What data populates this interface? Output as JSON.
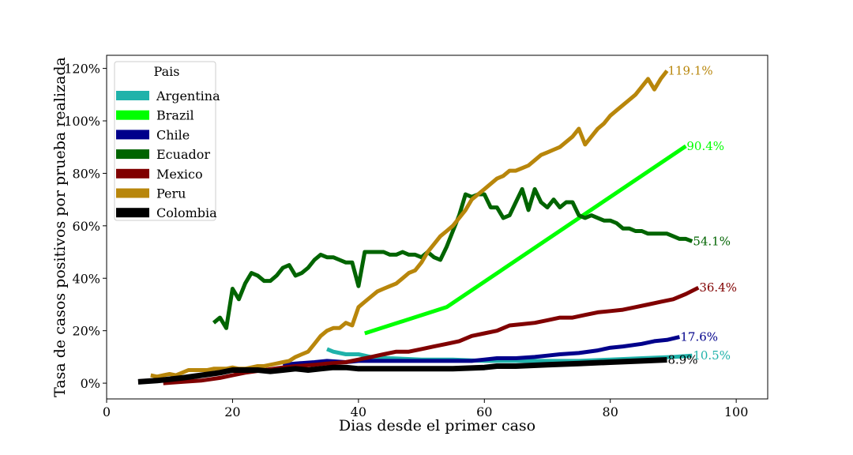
{
  "chart_data": {
    "type": "line",
    "title": "",
    "xlabel": "Dias desde el primer caso",
    "ylabel": "Tasa de casos positivos por prueba realizada",
    "xlim": [
      0,
      105
    ],
    "ylim": [
      -6,
      125
    ],
    "xticks": [
      0,
      20,
      40,
      60,
      80,
      100
    ],
    "xtick_labels": [
      "0",
      "20",
      "40",
      "60",
      "80",
      "100"
    ],
    "yticks": [
      0,
      20,
      40,
      60,
      80,
      100,
      120
    ],
    "ytick_labels": [
      "0%",
      "20%",
      "40%",
      "60%",
      "80%",
      "100%",
      "120%"
    ],
    "grid": false,
    "legend": {
      "title": "Pais",
      "position": "top-left",
      "entries": [
        "Argentina",
        "Brazil",
        "Chile",
        "Ecuador",
        "Mexico",
        "Peru",
        "Colombia"
      ]
    },
    "series": [
      {
        "name": "Argentina",
        "color": "#20b2aa",
        "end_label": "10.5%",
        "points": [
          [
            35,
            13
          ],
          [
            36,
            12
          ],
          [
            38,
            11
          ],
          [
            40,
            11
          ],
          [
            42,
            10
          ],
          [
            45,
            9.5
          ],
          [
            50,
            9
          ],
          [
            55,
            9
          ],
          [
            60,
            8.5
          ],
          [
            65,
            8.5
          ],
          [
            70,
            8.5
          ],
          [
            75,
            8.5
          ],
          [
            80,
            9
          ],
          [
            85,
            9.5
          ],
          [
            90,
            10
          ],
          [
            93,
            10.5
          ]
        ]
      },
      {
        "name": "Brazil",
        "color": "#00ff00",
        "end_label": "90.4%",
        "points": [
          [
            41,
            19
          ],
          [
            54,
            29
          ],
          [
            92,
            90.4
          ]
        ]
      },
      {
        "name": "Chile",
        "color": "#00008b",
        "end_label": "17.6%",
        "points": [
          [
            28,
            7
          ],
          [
            30,
            7.5
          ],
          [
            33,
            8
          ],
          [
            35,
            8.5
          ],
          [
            38,
            8
          ],
          [
            40,
            8.5
          ],
          [
            45,
            8.5
          ],
          [
            50,
            8.5
          ],
          [
            55,
            8.5
          ],
          [
            58,
            8.5
          ],
          [
            60,
            9
          ],
          [
            62,
            9.5
          ],
          [
            65,
            9.5
          ],
          [
            68,
            10
          ],
          [
            70,
            10.5
          ],
          [
            72,
            11
          ],
          [
            75,
            11.5
          ],
          [
            78,
            12.5
          ],
          [
            80,
            13.5
          ],
          [
            82,
            14
          ],
          [
            85,
            15
          ],
          [
            87,
            16
          ],
          [
            89,
            16.5
          ],
          [
            91,
            17.6
          ]
        ]
      },
      {
        "name": "Ecuador",
        "color": "#006400",
        "end_label": "54.1%",
        "points": [
          [
            17,
            23
          ],
          [
            18,
            25
          ],
          [
            19,
            21
          ],
          [
            20,
            36
          ],
          [
            21,
            32
          ],
          [
            22,
            38
          ],
          [
            23,
            42
          ],
          [
            24,
            41
          ],
          [
            25,
            39
          ],
          [
            26,
            39
          ],
          [
            27,
            41
          ],
          [
            28,
            44
          ],
          [
            29,
            45
          ],
          [
            30,
            41
          ],
          [
            31,
            42
          ],
          [
            32,
            44
          ],
          [
            33,
            47
          ],
          [
            34,
            49
          ],
          [
            35,
            48
          ],
          [
            36,
            48
          ],
          [
            37,
            47
          ],
          [
            38,
            46
          ],
          [
            39,
            46
          ],
          [
            40,
            37
          ],
          [
            41,
            50
          ],
          [
            42,
            50
          ],
          [
            43,
            50
          ],
          [
            44,
            50
          ],
          [
            45,
            49
          ],
          [
            46,
            49
          ],
          [
            47,
            50
          ],
          [
            48,
            49
          ],
          [
            49,
            49
          ],
          [
            50,
            48
          ],
          [
            51,
            50
          ],
          [
            52,
            48
          ],
          [
            53,
            47
          ],
          [
            54,
            52
          ],
          [
            55,
            58
          ],
          [
            56,
            64
          ],
          [
            57,
            72
          ],
          [
            58,
            71
          ],
          [
            59,
            72
          ],
          [
            60,
            72
          ],
          [
            61,
            67
          ],
          [
            62,
            67
          ],
          [
            63,
            63
          ],
          [
            64,
            64
          ],
          [
            65,
            69
          ],
          [
            66,
            74
          ],
          [
            67,
            66
          ],
          [
            68,
            74
          ],
          [
            69,
            69
          ],
          [
            70,
            67
          ],
          [
            71,
            70
          ],
          [
            72,
            67
          ],
          [
            73,
            69
          ],
          [
            74,
            69
          ],
          [
            75,
            64
          ],
          [
            76,
            63
          ],
          [
            77,
            64
          ],
          [
            78,
            63
          ],
          [
            79,
            62
          ],
          [
            80,
            62
          ],
          [
            81,
            61
          ],
          [
            82,
            59
          ],
          [
            83,
            59
          ],
          [
            84,
            58
          ],
          [
            85,
            58
          ],
          [
            86,
            57
          ],
          [
            87,
            57
          ],
          [
            88,
            57
          ],
          [
            89,
            57
          ],
          [
            90,
            56
          ],
          [
            91,
            55
          ],
          [
            92,
            55
          ],
          [
            93,
            54.1
          ]
        ]
      },
      {
        "name": "Mexico",
        "color": "#800000",
        "end_label": "36.4%",
        "points": [
          [
            9,
            0
          ],
          [
            12,
            0.5
          ],
          [
            15,
            1
          ],
          [
            18,
            2
          ],
          [
            20,
            3
          ],
          [
            22,
            4
          ],
          [
            25,
            5
          ],
          [
            28,
            6
          ],
          [
            30,
            6.5
          ],
          [
            33,
            7
          ],
          [
            35,
            7.5
          ],
          [
            38,
            8
          ],
          [
            40,
            9
          ],
          [
            42,
            10
          ],
          [
            44,
            11
          ],
          [
            46,
            12
          ],
          [
            48,
            12
          ],
          [
            50,
            13
          ],
          [
            52,
            14
          ],
          [
            54,
            15
          ],
          [
            56,
            16
          ],
          [
            58,
            18
          ],
          [
            60,
            19
          ],
          [
            62,
            20
          ],
          [
            64,
            22
          ],
          [
            66,
            22.5
          ],
          [
            68,
            23
          ],
          [
            70,
            24
          ],
          [
            72,
            25
          ],
          [
            74,
            25
          ],
          [
            76,
            26
          ],
          [
            78,
            27
          ],
          [
            80,
            27.5
          ],
          [
            82,
            28
          ],
          [
            84,
            29
          ],
          [
            86,
            30
          ],
          [
            88,
            31
          ],
          [
            90,
            32
          ],
          [
            92,
            34
          ],
          [
            94,
            36.4
          ]
        ]
      },
      {
        "name": "Peru",
        "color": "#b8860b",
        "end_label": "119.1%",
        "points": [
          [
            7,
            3
          ],
          [
            8,
            2.5
          ],
          [
            9,
            3
          ],
          [
            10,
            3.5
          ],
          [
            11,
            3
          ],
          [
            12,
            4
          ],
          [
            13,
            5
          ],
          [
            14,
            5
          ],
          [
            15,
            5
          ],
          [
            16,
            5
          ],
          [
            17,
            5.5
          ],
          [
            18,
            5.5
          ],
          [
            19,
            5.5
          ],
          [
            20,
            6
          ],
          [
            21,
            5.5
          ],
          [
            22,
            5.5
          ],
          [
            23,
            6
          ],
          [
            24,
            6.5
          ],
          [
            25,
            6.5
          ],
          [
            26,
            7
          ],
          [
            27,
            7.5
          ],
          [
            28,
            8
          ],
          [
            29,
            8.5
          ],
          [
            30,
            10
          ],
          [
            31,
            11
          ],
          [
            32,
            12
          ],
          [
            33,
            15
          ],
          [
            34,
            18
          ],
          [
            35,
            20
          ],
          [
            36,
            21
          ],
          [
            37,
            21
          ],
          [
            38,
            23
          ],
          [
            39,
            22
          ],
          [
            40,
            29
          ],
          [
            41,
            31
          ],
          [
            42,
            33
          ],
          [
            43,
            35
          ],
          [
            44,
            36
          ],
          [
            45,
            37
          ],
          [
            46,
            38
          ],
          [
            47,
            40
          ],
          [
            48,
            42
          ],
          [
            49,
            43
          ],
          [
            50,
            46
          ],
          [
            51,
            50
          ],
          [
            52,
            53
          ],
          [
            53,
            56
          ],
          [
            54,
            58
          ],
          [
            55,
            60
          ],
          [
            56,
            63
          ],
          [
            57,
            66
          ],
          [
            58,
            70
          ],
          [
            59,
            72
          ],
          [
            60,
            74
          ],
          [
            61,
            76
          ],
          [
            62,
            78
          ],
          [
            63,
            79
          ],
          [
            64,
            81
          ],
          [
            65,
            81
          ],
          [
            66,
            82
          ],
          [
            67,
            83
          ],
          [
            68,
            85
          ],
          [
            69,
            87
          ],
          [
            70,
            88
          ],
          [
            71,
            89
          ],
          [
            72,
            90
          ],
          [
            73,
            92
          ],
          [
            74,
            94
          ],
          [
            75,
            97
          ],
          [
            76,
            91
          ],
          [
            77,
            94
          ],
          [
            78,
            97
          ],
          [
            79,
            99
          ],
          [
            80,
            102
          ],
          [
            81,
            104
          ],
          [
            82,
            106
          ],
          [
            83,
            108
          ],
          [
            84,
            110
          ],
          [
            85,
            113
          ],
          [
            86,
            116
          ],
          [
            87,
            112
          ],
          [
            88,
            116
          ],
          [
            89,
            119.1
          ]
        ]
      },
      {
        "name": "Colombia",
        "color": "#000000",
        "end_label": "8.9%",
        "points": [
          [
            5,
            0.5
          ],
          [
            8,
            1
          ],
          [
            10,
            1.5
          ],
          [
            12,
            2
          ],
          [
            15,
            3
          ],
          [
            18,
            4
          ],
          [
            20,
            5
          ],
          [
            22,
            5
          ],
          [
            24,
            5
          ],
          [
            26,
            4.5
          ],
          [
            28,
            5
          ],
          [
            30,
            5.5
          ],
          [
            32,
            5
          ],
          [
            34,
            5.5
          ],
          [
            36,
            6
          ],
          [
            38,
            6
          ],
          [
            40,
            5.5
          ],
          [
            45,
            5.5
          ],
          [
            50,
            5.5
          ],
          [
            55,
            5.5
          ],
          [
            60,
            6
          ],
          [
            62,
            6.5
          ],
          [
            65,
            6.5
          ],
          [
            70,
            7
          ],
          [
            75,
            7.5
          ],
          [
            80,
            8
          ],
          [
            85,
            8.5
          ],
          [
            89,
            8.9
          ]
        ]
      }
    ]
  }
}
